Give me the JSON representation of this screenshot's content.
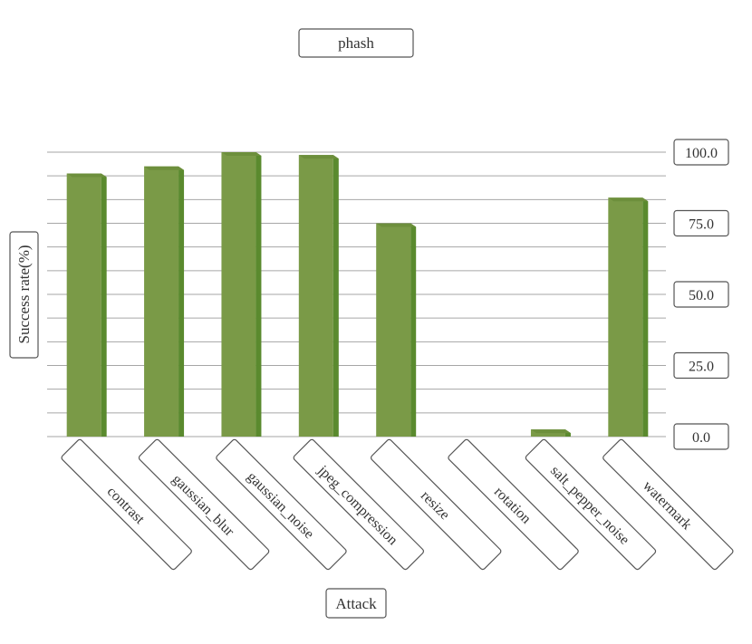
{
  "chart_data": {
    "type": "bar",
    "title": "phash",
    "xlabel": "Attack",
    "ylabel": "Success rate(%)",
    "categories": [
      "contrast",
      "gaussian_blur",
      "gaussian_noise",
      "jpeg_compression",
      "resize",
      "rotation",
      "salt_pepper_noise",
      "watermark"
    ],
    "values": [
      92.5,
      95.0,
      100.0,
      99.0,
      75.0,
      0.0,
      2.5,
      84.0
    ],
    "ylim": [
      0,
      100
    ],
    "yticks": [
      "0.0",
      "25.0",
      "50.0",
      "75.0",
      "100.0"
    ],
    "y_axis_position": "right",
    "grid": true,
    "legend": "none",
    "colors": {
      "bar": "#7a9a47",
      "bar_side": "#5a8a2e",
      "grid": "#a6a6a6"
    }
  }
}
